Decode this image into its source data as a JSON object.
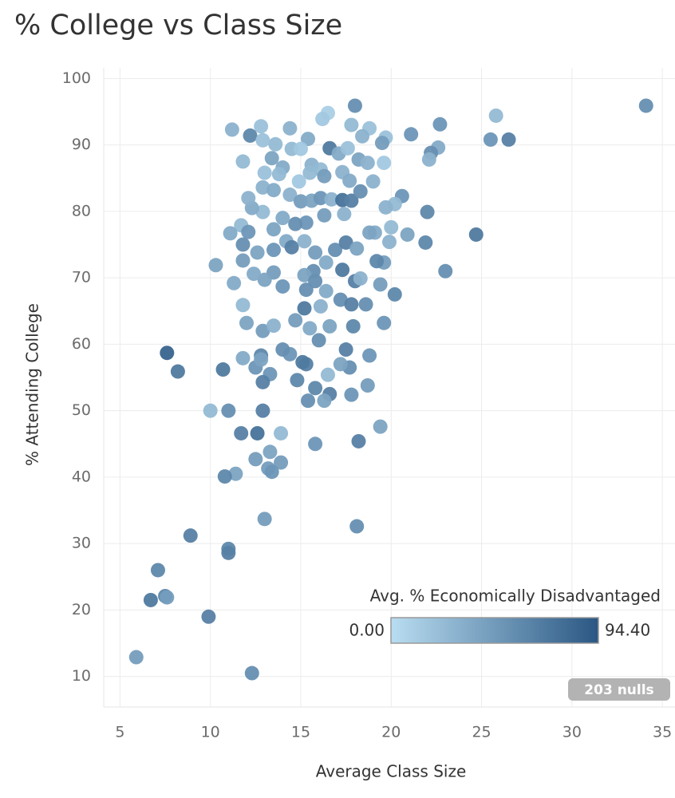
{
  "chart_data": {
    "type": "scatter",
    "title": "% College vs Class Size",
    "x_label": "Average Class Size",
    "y_label": "% Attending College",
    "xlim": [
      4.1,
      35.7
    ],
    "ylim": [
      5.4,
      101.6
    ],
    "xticks": [
      5,
      10,
      15,
      20,
      25,
      30,
      35
    ],
    "yticks": [
      10,
      20,
      30,
      40,
      50,
      60,
      70,
      80,
      90,
      100
    ],
    "grid": true,
    "color_title": "Avg. % Economically Disadvantaged",
    "color_domain": [
      {
        "value": 0,
        "label": "0.00"
      },
      {
        "value": 94.4,
        "label": "94.40"
      }
    ],
    "color_range": [
      "#b9ddf1",
      "#2a5783"
    ],
    "legend": "bottom-right",
    "nulls_label": "203 nulls",
    "x": [
      34.1,
      25.8,
      25.5,
      26.5,
      24.7,
      23,
      22.7,
      22.6,
      22.2,
      22.1,
      22,
      21.9,
      21.1,
      20.6,
      20.9,
      20.2,
      19.6,
      19.6,
      19.4,
      18.7,
      18.8,
      18.6,
      18.1,
      18.2,
      17.8,
      17.9,
      17.7,
      17.5,
      17.2,
      16.6,
      16.5,
      16.3,
      15.8,
      15.8,
      15.4,
      15.3,
      15.1,
      14.8,
      14.4,
      14,
      13.3,
      12.9,
      12.8,
      12.5,
      12.8,
      11.8,
      10.7,
      12.9,
      12.6,
      11.7,
      11,
      10,
      13.9,
      13.3,
      12.5,
      13.2,
      13.9,
      13.4,
      11.4,
      10.8,
      13,
      8.9,
      11,
      11,
      7.1,
      6.7,
      7.5,
      7.6,
      9.9,
      5.9,
      12.3,
      7.6,
      8.2,
      10.3,
      11.3,
      11.8,
      12,
      12.9,
      13.5,
      14.7,
      15.2,
      15.5,
      16,
      16.6,
      16.1,
      17.2,
      17.8,
      18,
      18.3,
      17.3,
      19.2,
      19.4,
      19.9,
      20,
      20.2,
      19.7,
      19.1,
      19,
      19.6,
      19.7,
      19.5,
      18.8,
      18,
      17.8,
      16.5,
      16.2,
      15.4,
      14.4,
      13.6,
      12.8,
      12.2,
      11.2,
      11.8,
      12.9,
      13.4,
      14,
      14.5,
      15,
      15.6,
      16.1,
      16.6,
      17.1,
      17.6,
      18.4,
      18.2,
      17.3,
      16.3,
      15.5,
      14.9,
      13.8,
      13,
      12.9,
      13.5,
      14.4,
      15,
      15.6,
      16.1,
      16.7,
      17.3,
      17.8,
      18.3,
      17.4,
      16.3,
      15.3,
      14.7,
      14,
      13.5,
      12.9,
      12.3,
      12.1,
      11.7,
      11.1,
      12.1,
      11.8,
      12.6,
      13.5,
      14.2,
      14.5,
      15.2,
      15.8,
      16.9,
      17.5,
      18.1,
      18.8,
      16.4,
      15.7,
      15.2,
      14,
      13.5,
      13,
      12.4,
      11.8,
      15.8,
      16.4,
      15.3,
      18.7,
      17.7
    ],
    "values": [
      95.9,
      94.4,
      90.8,
      90.8,
      76.5,
      71,
      93.1,
      89.6,
      88.8,
      87.8,
      79.9,
      75.3,
      91.6,
      82.3,
      76.5,
      67.5,
      63.2,
      72.3,
      47.6,
      53.8,
      58.3,
      66,
      32.6,
      45.4,
      52.4,
      62.7,
      56.5,
      59.2,
      57,
      52.5,
      55.4,
      51.5,
      45,
      53.4,
      51.5,
      57,
      57.3,
      54.6,
      58.5,
      59.2,
      55.5,
      54.3,
      58.3,
      56.5,
      57.7,
      57.9,
      56.2,
      50,
      46.6,
      46.6,
      50,
      50,
      46.6,
      43.8,
      42.7,
      41.3,
      42.2,
      40.8,
      40.5,
      40.1,
      33.7,
      31.2,
      29.2,
      28.6,
      26,
      21.5,
      22.1,
      21.9,
      19,
      12.9,
      10.5,
      58.7,
      55.9,
      71.9,
      69.2,
      65.9,
      63.2,
      62,
      62.8,
      63.6,
      65.4,
      62.4,
      60.6,
      62.7,
      65.7,
      66.7,
      66,
      69.5,
      69.9,
      71.2,
      72.5,
      69,
      75.4,
      77.6,
      81.1,
      80.6,
      76.8,
      84.5,
      87.3,
      91.1,
      90.3,
      92.5,
      95.9,
      93,
      94.8,
      93.9,
      90.9,
      92.5,
      90.1,
      92.8,
      91.4,
      92.3,
      87.5,
      90.7,
      88,
      86.6,
      89.4,
      89.4,
      87,
      86.3,
      89.5,
      88.7,
      89.5,
      91.3,
      87.8,
      85.9,
      85.3,
      85.8,
      84.5,
      85.6,
      85.8,
      83.6,
      83.2,
      82.5,
      81.5,
      81.6,
      82,
      81.8,
      81.7,
      81.6,
      83,
      79.6,
      79.4,
      78.3,
      78.1,
      79,
      77.3,
      79.9,
      80.5,
      82,
      77.9,
      76.7,
      76.9,
      75,
      73.8,
      74.2,
      75.5,
      74.6,
      75.5,
      73.8,
      74.2,
      75.3,
      74.4,
      76.8,
      72.3,
      71,
      70.4,
      68.7,
      70.8,
      69.7,
      70.6,
      72.6,
      69.5,
      68,
      68.2,
      87.3,
      84.6
    ],
    "color_values": [
      55,
      25,
      50,
      65,
      70,
      55,
      50,
      35,
      55,
      30,
      60,
      60,
      50,
      50,
      40,
      60,
      50,
      45,
      40,
      45,
      50,
      55,
      55,
      65,
      50,
      60,
      55,
      65,
      40,
      65,
      25,
      40,
      50,
      60,
      55,
      65,
      70,
      60,
      50,
      55,
      50,
      65,
      60,
      50,
      40,
      35,
      70,
      65,
      75,
      65,
      55,
      25,
      25,
      40,
      45,
      45,
      45,
      50,
      40,
      60,
      45,
      65,
      60,
      65,
      60,
      70,
      60,
      45,
      65,
      45,
      55,
      85,
      70,
      40,
      35,
      25,
      40,
      45,
      30,
      45,
      70,
      35,
      55,
      40,
      30,
      55,
      65,
      65,
      30,
      70,
      60,
      45,
      30,
      25,
      25,
      30,
      35,
      30,
      15,
      20,
      45,
      20,
      55,
      25,
      10,
      15,
      35,
      30,
      25,
      20,
      60,
      30,
      25,
      20,
      40,
      35,
      25,
      15,
      30,
      25,
      70,
      35,
      20,
      30,
      40,
      30,
      45,
      25,
      15,
      25,
      20,
      30,
      35,
      30,
      45,
      40,
      50,
      30,
      75,
      65,
      55,
      30,
      45,
      50,
      55,
      35,
      40,
      25,
      35,
      30,
      25,
      35,
      50,
      55,
      40,
      50,
      35,
      65,
      30,
      45,
      55,
      65,
      40,
      40,
      35,
      55,
      40,
      50,
      45,
      40,
      35,
      45,
      55,
      35,
      55,
      30,
      35
    ]
  }
}
